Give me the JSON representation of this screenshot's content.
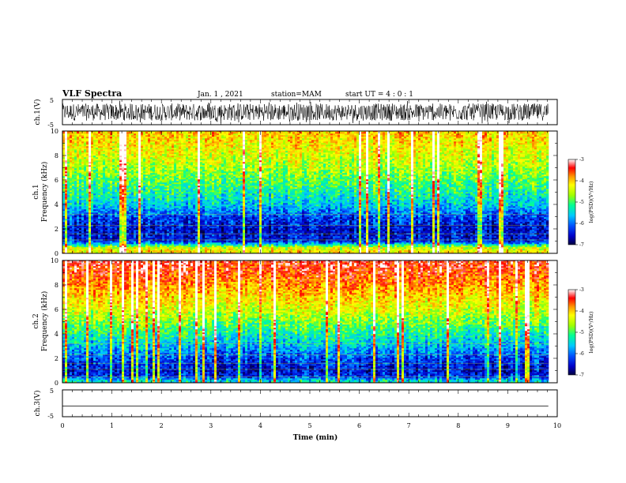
{
  "header": {
    "title": "VLF Spectra",
    "date": "Jan. 1 , 2021",
    "station": "station=MAM",
    "start": "start UT =  4 : 0  : 1"
  },
  "chart_data": [
    {
      "type": "line",
      "panel": "ch1-waveform",
      "ylabel": "ch.1(V)",
      "ylim": [
        -5,
        5
      ],
      "yticks": [
        "5",
        "-5"
      ],
      "x_range_min": [
        0,
        9.82
      ],
      "signal": "dense noise, amplitude near full scale (about ±4 V)"
    },
    {
      "type": "heatmap",
      "panel": "ch1-spectrogram",
      "ylabel_line1": "ch.1",
      "ylabel_line2": "Frequency (kHz)",
      "ylim": [
        0,
        10
      ],
      "yticks": [
        "0",
        "2",
        "4",
        "6",
        "8",
        "10"
      ],
      "x_range_min": [
        0,
        9.82
      ],
      "colorbar": {
        "label": "log(PSD)(V²/Hz)",
        "ticks": [
          "-3",
          "-4",
          "-5",
          "-6",
          "-7"
        ],
        "range": [
          -7,
          -3
        ]
      },
      "freq_profile_logpsd": [
        {
          "f": 0.2,
          "v": -4.3
        },
        {
          "f": 0.5,
          "v": -4.6
        },
        {
          "f": 1.0,
          "v": -6.4
        },
        {
          "f": 2.0,
          "v": -6.5
        },
        {
          "f": 3.0,
          "v": -6.2
        },
        {
          "f": 4.0,
          "v": -5.6
        },
        {
          "f": 5.0,
          "v": -5.3
        },
        {
          "f": 6.0,
          "v": -5.0
        },
        {
          "f": 7.0,
          "v": -4.7
        },
        {
          "f": 8.0,
          "v": -4.5
        },
        {
          "f": 9.0,
          "v": -4.3
        },
        {
          "f": 10.0,
          "v": -4.1
        }
      ]
    },
    {
      "type": "heatmap",
      "panel": "ch2-spectrogram",
      "ylabel_line1": "ch.2",
      "ylabel_line2": "Frequency (kHz)",
      "ylim": [
        0,
        10
      ],
      "yticks": [
        "0",
        "2",
        "4",
        "6",
        "8",
        "10"
      ],
      "x_range_min": [
        0,
        9.82
      ],
      "colorbar": {
        "label": "log(PSD)(V²/Hz)",
        "ticks": [
          "-3",
          "-4",
          "-5",
          "-6",
          "-7"
        ],
        "range": [
          -7,
          -3
        ]
      },
      "freq_profile_logpsd": [
        {
          "f": 0.2,
          "v": -5.5
        },
        {
          "f": 0.5,
          "v": -6.3
        },
        {
          "f": 1.0,
          "v": -6.5
        },
        {
          "f": 2.0,
          "v": -6.2
        },
        {
          "f": 3.0,
          "v": -5.7
        },
        {
          "f": 4.0,
          "v": -5.3
        },
        {
          "f": 5.0,
          "v": -4.9
        },
        {
          "f": 6.0,
          "v": -4.5
        },
        {
          "f": 7.0,
          "v": -4.2
        },
        {
          "f": 8.0,
          "v": -3.9
        },
        {
          "f": 9.0,
          "v": -3.6
        },
        {
          "f": 10.0,
          "v": -3.4
        }
      ]
    },
    {
      "type": "line",
      "panel": "ch3-waveform",
      "ylabel": "ch.3(V)",
      "ylim": [
        -5,
        5
      ],
      "yticks": [
        "5",
        "-5"
      ],
      "x_range_min": [
        0,
        9.82
      ],
      "x": [
        0,
        9.82
      ],
      "y": [
        -1,
        -1
      ]
    }
  ],
  "xaxis": {
    "label": "Time (min)",
    "range": [
      0,
      10
    ],
    "ticks": [
      "0",
      "1",
      "2",
      "3",
      "4",
      "5",
      "6",
      "7",
      "8",
      "9",
      "10"
    ]
  },
  "colormap": [
    "#000040",
    "#0000c8",
    "#0050ff",
    "#00c8ff",
    "#00ff96",
    "#a0ff00",
    "#ffff00",
    "#ff9600",
    "#ff0000",
    "#ffffff"
  ]
}
